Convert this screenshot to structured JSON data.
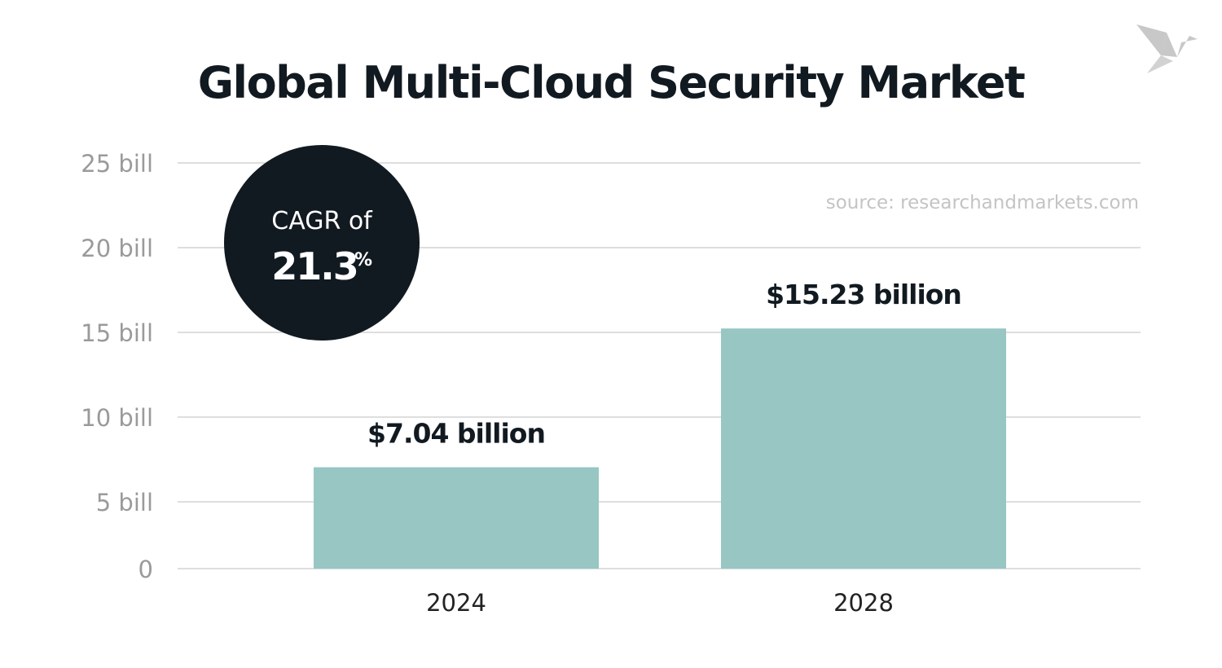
{
  "chart_data": {
    "type": "bar",
    "title": "Global Multi-Cloud Security Market",
    "source": "source: researchandmarkets.com",
    "categories": [
      "2024",
      "2028"
    ],
    "values": [
      7.04,
      15.23
    ],
    "data_labels": [
      "$7.04 billion",
      "$15.23 billion"
    ],
    "yticks": [
      0,
      5,
      10,
      15,
      20,
      25
    ],
    "ytick_labels": [
      "0",
      "5 bill",
      "10 bill",
      "15 bill",
      "20 bill",
      "25 bill"
    ],
    "ylim": [
      0,
      25
    ],
    "grid": true,
    "bar_color": "#97c6c3",
    "annotation": {
      "line1": "CAGR of",
      "value": "21.3",
      "unit": "%",
      "color": "#121a21"
    }
  },
  "logo": {
    "icon": "origami-bird-icon",
    "color": "#c8c8c8"
  }
}
